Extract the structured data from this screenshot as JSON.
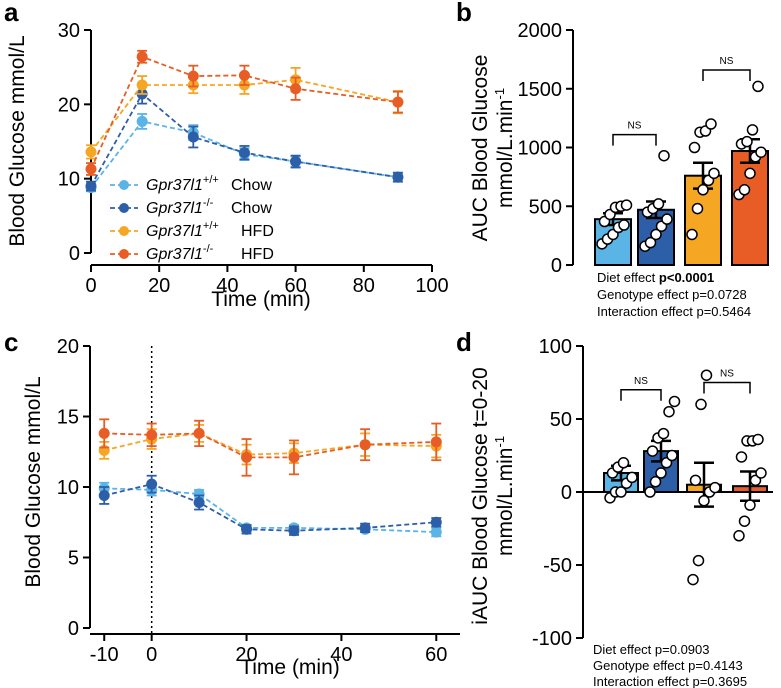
{
  "chart_data": [
    {
      "panel": "a",
      "type": "line",
      "xlabel": "Time  (min)",
      "ylabel": "Blood Glucose mmol/L",
      "xlim": [
        0,
        100
      ],
      "ylim": [
        0,
        30
      ],
      "xticks": [
        "0",
        "20",
        "40",
        "60",
        "80",
        "100"
      ],
      "yticks": [
        "0",
        "10",
        "20",
        "30"
      ],
      "x": [
        0,
        15,
        30,
        45,
        60,
        90
      ],
      "series": [
        {
          "gene": "Gpr37l1",
          "genotype": "+/+",
          "diet": "Chow",
          "color": "#5ab4e5",
          "values": [
            8.8,
            17.7,
            16.2,
            13.3,
            12.3,
            10.2
          ],
          "errors": [
            0.5,
            1.0,
            1.0,
            0.8,
            0.7,
            0.6
          ]
        },
        {
          "gene": "Gpr37l1",
          "genotype": "-/-",
          "diet": "Chow",
          "color": "#2c5fa8",
          "values": [
            9.0,
            21.4,
            15.6,
            13.5,
            12.3,
            10.2
          ],
          "errors": [
            0.6,
            1.3,
            1.4,
            0.9,
            0.8,
            0.6
          ]
        },
        {
          "gene": "Gpr37l1",
          "genotype": "+/+",
          "diet": "HFD",
          "color": "#f5a623",
          "values": [
            13.6,
            22.6,
            22.6,
            22.6,
            23.3,
            20.3
          ],
          "errors": [
            0.9,
            1.2,
            1.1,
            1.2,
            1.6,
            1.5
          ]
        },
        {
          "gene": "Gpr37l1",
          "genotype": "-/-",
          "diet": "HFD",
          "color": "#e85d25",
          "values": [
            11.3,
            26.4,
            23.8,
            23.9,
            22.1,
            20.3
          ],
          "errors": [
            0.8,
            0.8,
            1.4,
            1.3,
            1.5,
            1.4
          ]
        }
      ]
    },
    {
      "panel": "b",
      "type": "bar",
      "ylabel_line1": "AUC Blood Glucose",
      "ylabel_line2": "mmol/L.min",
      "ylabel_sup": "-1",
      "ylim": [
        0,
        2000
      ],
      "yticks": [
        "0",
        "500",
        "1000",
        "1500",
        "2000"
      ],
      "bars": [
        {
          "color": "#5ab4e5",
          "value": 390,
          "sem": 50,
          "points": [
            180,
            220,
            260,
            320,
            340,
            370,
            430,
            490,
            500,
            510
          ]
        },
        {
          "color": "#2c5fa8",
          "value": 470,
          "sem": 70,
          "points": [
            160,
            190,
            260,
            330,
            390,
            450,
            480,
            520,
            930
          ]
        },
        {
          "color": "#f5a623",
          "value": 760,
          "sem": 110,
          "points": [
            260,
            480,
            640,
            720,
            780,
            1000,
            1130,
            1140,
            1200
          ]
        },
        {
          "color": "#e85d25",
          "value": 970,
          "sem": 100,
          "points": [
            600,
            640,
            780,
            920,
            960,
            1030,
            1050,
            1150,
            1520
          ]
        }
      ],
      "comparisons": [
        {
          "label": "NS",
          "from": 0,
          "to": 1,
          "y": 1110
        },
        {
          "label": "NS",
          "from": 2,
          "to": 3,
          "y": 1660
        }
      ],
      "stats": {
        "diet_label": "Diet effect  ",
        "diet_value": "p<0.0001",
        "genotype": "Genotype effect p=0.0728",
        "interaction": "Interaction effect p=0.5464"
      }
    },
    {
      "panel": "c",
      "type": "line",
      "xlabel": "Time (min)",
      "ylabel": "Blood Glucose mmol/L",
      "xlim": [
        -13,
        65
      ],
      "ylim": [
        0,
        20
      ],
      "xticks": [
        "-10",
        "0",
        "20",
        "40",
        "60"
      ],
      "yticks": [
        "0",
        "5",
        "10",
        "15",
        "20"
      ],
      "x": [
        -10,
        0,
        10,
        20,
        30,
        45,
        60
      ],
      "vline_x": 0,
      "series": [
        {
          "color": "#5ab4e5",
          "values": [
            9.9,
            9.8,
            9.5,
            7.1,
            7.1,
            7.0,
            6.8
          ],
          "errors": [
            0.4,
            0.4,
            0.3,
            0.2,
            0.2,
            0.2,
            0.3
          ]
        },
        {
          "color": "#2c5fa8",
          "values": [
            9.4,
            10.2,
            8.9,
            7.0,
            6.9,
            7.1,
            7.5
          ],
          "errors": [
            0.6,
            0.6,
            0.5,
            0.3,
            0.3,
            0.3,
            0.3
          ]
        },
        {
          "color": "#f5a623",
          "values": [
            12.6,
            13.4,
            13.8,
            12.3,
            12.4,
            13.0,
            12.9
          ],
          "errors": [
            0.6,
            0.7,
            0.6,
            0.7,
            0.7,
            0.8,
            0.8
          ]
        },
        {
          "color": "#e85d25",
          "values": [
            13.8,
            13.7,
            13.8,
            12.1,
            12.1,
            13.0,
            13.2
          ],
          "errors": [
            1.0,
            0.8,
            0.9,
            1.3,
            1.2,
            1.1,
            1.3
          ]
        }
      ]
    },
    {
      "panel": "d",
      "type": "bar",
      "ylabel_line1": "iAUC Blood Glucose t=0-20",
      "ylabel_line2": "mmol/L.min",
      "ylabel_sup": "-1",
      "ylim": [
        -100,
        100
      ],
      "yticks": [
        "100",
        "50",
        "0",
        "-50",
        "-100"
      ],
      "bars": [
        {
          "color": "#5ab4e5",
          "value": 13,
          "sem": 5,
          "points": [
            -4,
            0,
            0,
            6,
            10,
            13,
            17,
            20
          ]
        },
        {
          "color": "#2c5fa8",
          "value": 28,
          "sem": 7,
          "points": [
            0,
            7,
            13,
            20,
            25,
            28,
            37,
            40,
            55,
            62
          ]
        },
        {
          "color": "#f5a623",
          "value": 5,
          "sem": 15,
          "points": [
            -60,
            -47,
            -6,
            0,
            3,
            8,
            60,
            80
          ]
        },
        {
          "color": "#e85d25",
          "value": 4,
          "sem": 10,
          "points": [
            -30,
            -20,
            -9,
            8,
            13,
            24,
            35,
            35,
            36
          ]
        }
      ],
      "comparisons": [
        {
          "label": "NS",
          "from": 0,
          "to": 1,
          "y": 70
        },
        {
          "label": "NS",
          "from": 2,
          "to": 3,
          "y": 75
        }
      ],
      "stats": {
        "diet": "Diet effect  p=0.0903",
        "genotype": "Genotype effect p=0.4143",
        "interaction": "Interaction effect p=0.3695"
      }
    }
  ]
}
